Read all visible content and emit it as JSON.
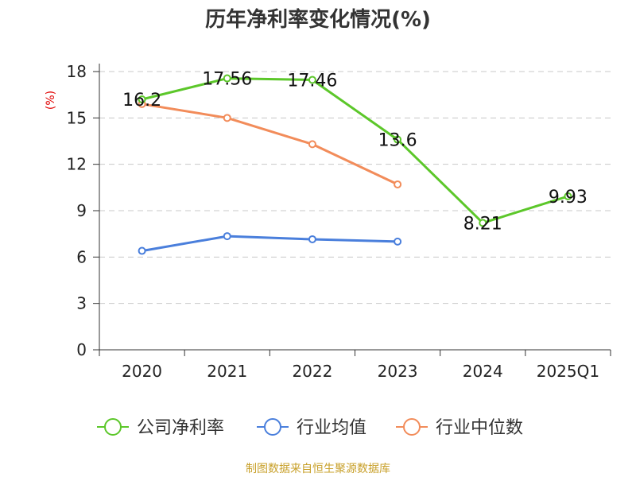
{
  "chart_data": {
    "type": "line",
    "title": "历年净利率变化情况(%)",
    "ylabel": "(%)",
    "xlabel": "",
    "categories": [
      "2020",
      "2021",
      "2022",
      "2023",
      "2024",
      "2025Q1"
    ],
    "ylim": [
      0,
      18
    ],
    "yticks": [
      0,
      3,
      6,
      9,
      12,
      15,
      18
    ],
    "grid": true,
    "legend_position": "bottom",
    "series": [
      {
        "name": "公司净利率",
        "color": "#5cc72a",
        "values": [
          16.2,
          17.56,
          17.46,
          13.6,
          8.21,
          9.93
        ],
        "labels": [
          "16.2",
          "17.56",
          "17.46",
          "13.6",
          "8.21",
          "9.93"
        ],
        "show_labels": true
      },
      {
        "name": "行业均值",
        "color": "#4a7fdc",
        "values": [
          6.4,
          7.35,
          7.15,
          7.0,
          null,
          null
        ],
        "show_labels": false
      },
      {
        "name": "行业中位数",
        "color": "#f28c5a",
        "values": [
          15.9,
          15.0,
          13.3,
          10.7,
          null,
          null
        ],
        "show_labels": false
      }
    ],
    "source": "制图数据来自恒生聚源数据库"
  }
}
